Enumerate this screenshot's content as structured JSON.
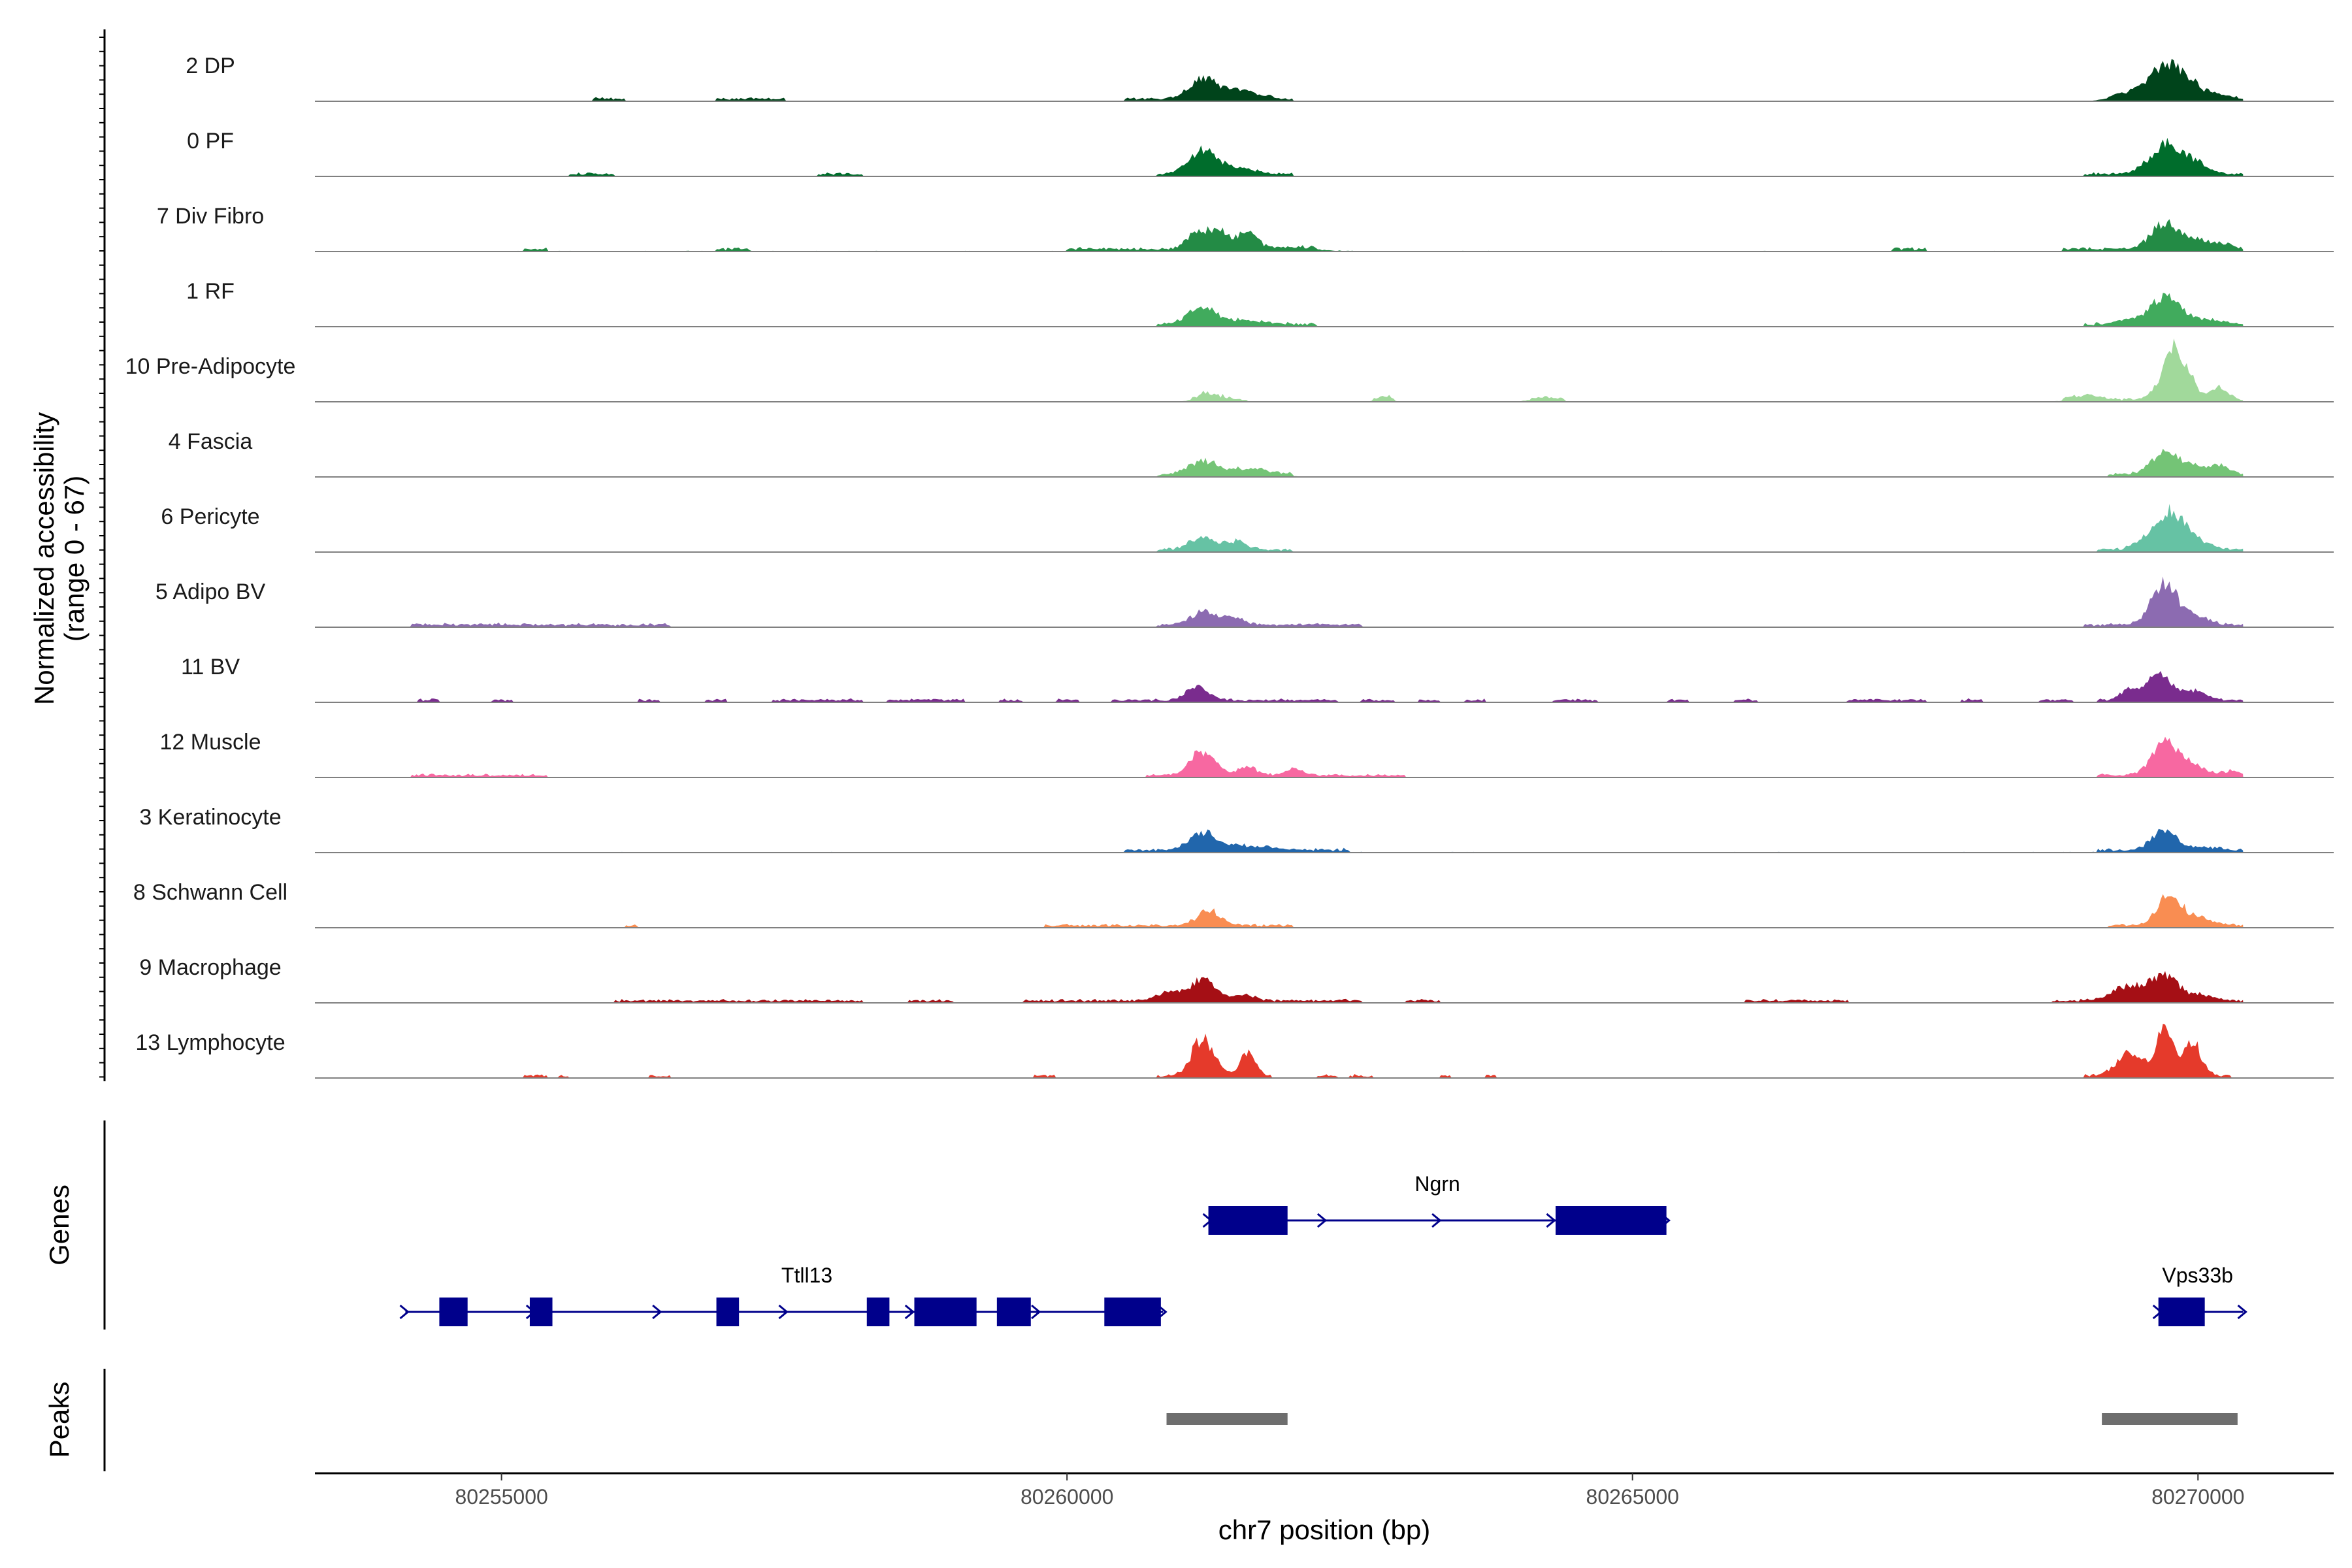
{
  "chart_data": {
    "type": "area",
    "title": "",
    "chromosome": "chr7",
    "xlabel": "chr7 position (bp)",
    "xlim": [
      80253350,
      80271200
    ],
    "xticks": [
      80255000,
      80260000,
      80265000,
      80270000
    ],
    "xtick_labels": [
      "80255000",
      "80260000",
      "80265000",
      "80270000"
    ],
    "ylabel_line1": "Normalized accessibility",
    "ylabel_line2": "(range 0 - 67)",
    "ylim": [
      0,
      67
    ],
    "genes_label": "Genes",
    "peaks_label": "Peaks",
    "series": [
      {
        "name": "2 DP",
        "color": "#00441b",
        "baseline": 0.4,
        "regions": [
          [
            80255800,
            80256100
          ],
          [
            80256900,
            80257500
          ],
          [
            80260500,
            80262000
          ],
          [
            80269200,
            80270400
          ]
        ],
        "peaks": [
          [
            80261200,
            18,
            120
          ],
          [
            80261450,
            6,
            120
          ],
          [
            80261650,
            4,
            120
          ],
          [
            80269400,
            6,
            150
          ],
          [
            80269700,
            28,
            130
          ],
          [
            80269900,
            12,
            120
          ],
          [
            80270150,
            4,
            120
          ]
        ]
      },
      {
        "name": "0 PF",
        "color": "#006d2c",
        "baseline": 0.4,
        "regions": [
          [
            80255600,
            80256000
          ],
          [
            80257800,
            80258200
          ],
          [
            80260800,
            80262000
          ],
          [
            80269000,
            80270400
          ]
        ],
        "peaks": [
          [
            80261200,
            20,
            120
          ],
          [
            80261500,
            6,
            140
          ],
          [
            80269700,
            26,
            130
          ],
          [
            80269950,
            10,
            130
          ]
        ]
      },
      {
        "name": "7 Div Fibro",
        "color": "#238b45",
        "baseline": 0.6,
        "regions": [
          [
            80255200,
            80255400
          ],
          [
            80256900,
            80257200
          ],
          [
            80260000,
            80262200
          ],
          [
            80267300,
            80267600
          ],
          [
            80268800,
            80270400
          ]
        ],
        "peaks": [
          [
            80261150,
            14,
            90
          ],
          [
            80261350,
            16,
            90
          ],
          [
            80261600,
            14,
            80
          ],
          [
            80262000,
            2,
            250
          ],
          [
            80269700,
            22,
            120
          ],
          [
            80269950,
            8,
            120
          ],
          [
            80270200,
            5,
            100
          ]
        ]
      },
      {
        "name": "1 RF",
        "color": "#41ab5d",
        "baseline": 0.4,
        "regions": [
          [
            80260800,
            80262200
          ],
          [
            80269000,
            80270400
          ]
        ],
        "peaks": [
          [
            80261200,
            16,
            120
          ],
          [
            80261600,
            4,
            150
          ],
          [
            80269400,
            4,
            140
          ],
          [
            80269720,
            24,
            130
          ],
          [
            80270100,
            4,
            140
          ]
        ]
      },
      {
        "name": "10 Pre-Adipocyte",
        "color": "#a1d99b",
        "baseline": 0.3,
        "regions": [
          [
            80261100,
            80261600
          ],
          [
            80262700,
            80262900
          ],
          [
            80264100,
            80264400
          ],
          [
            80268800,
            80270400
          ]
        ],
        "peaks": [
          [
            80261250,
            6,
            100
          ],
          [
            80262800,
            3,
            60
          ],
          [
            80264200,
            2,
            120
          ],
          [
            80269000,
            4,
            120
          ],
          [
            80269800,
            48,
            110
          ],
          [
            80270180,
            12,
            80
          ]
        ]
      },
      {
        "name": "4 Fascia",
        "color": "#74c476",
        "baseline": 0.3,
        "regions": [
          [
            80260800,
            80262000
          ],
          [
            80269200,
            80270400
          ]
        ],
        "peaks": [
          [
            80261200,
            12,
            120
          ],
          [
            80261600,
            5,
            200
          ],
          [
            80269700,
            18,
            120
          ],
          [
            80269950,
            8,
            140
          ],
          [
            80270200,
            6,
            100
          ]
        ]
      },
      {
        "name": "6 Pericyte",
        "color": "#66c2a4",
        "baseline": 0.3,
        "regions": [
          [
            80260800,
            80262000
          ],
          [
            80269100,
            80270400
          ]
        ],
        "peaks": [
          [
            80261200,
            12,
            110
          ],
          [
            80261500,
            8,
            90
          ],
          [
            80269600,
            14,
            120
          ],
          [
            80269780,
            30,
            110
          ],
          [
            80270000,
            8,
            110
          ]
        ]
      },
      {
        "name": "5 Adipo BV",
        "color": "#8c6bb1",
        "baseline": 0.5,
        "regions": [
          [
            80254200,
            80256500
          ],
          [
            80260800,
            80262600
          ],
          [
            80269000,
            80270400
          ]
        ],
        "peaks": [
          [
            80261200,
            12,
            100
          ],
          [
            80261450,
            8,
            100
          ],
          [
            80269700,
            36,
            110
          ],
          [
            80269950,
            8,
            130
          ]
        ]
      },
      {
        "name": "11 BV",
        "color": "#7a2c8e",
        "baseline": 0,
        "regions": [
          [
            80254250,
            80254450
          ],
          [
            80254900,
            80255100
          ],
          [
            80256200,
            80256400
          ],
          [
            80256800,
            80257000
          ],
          [
            80257400,
            80258200
          ],
          [
            80258400,
            80259100
          ],
          [
            80259400,
            80259600
          ],
          [
            80259900,
            80260100
          ],
          [
            80260400,
            80262400
          ],
          [
            80262600,
            80262900
          ],
          [
            80263100,
            80263300
          ],
          [
            80263500,
            80263700
          ],
          [
            80264300,
            80264700
          ],
          [
            80265300,
            80265500
          ],
          [
            80265900,
            80266100
          ],
          [
            80266900,
            80267600
          ],
          [
            80267900,
            80268100
          ],
          [
            80268600,
            80268900
          ],
          [
            80269100,
            80270400
          ]
        ],
        "peaks": [
          [
            80261150,
            12,
            100
          ],
          [
            80269400,
            10,
            80
          ],
          [
            80269650,
            22,
            110
          ],
          [
            80269950,
            8,
            120
          ]
        ]
      },
      {
        "name": "12 Muscle",
        "color": "#f768a1",
        "baseline": 0,
        "regions": [
          [
            80254200,
            80255400
          ],
          [
            80260700,
            80263000
          ],
          [
            80269100,
            80270400
          ]
        ],
        "peaks": [
          [
            80261200,
            22,
            110
          ],
          [
            80261600,
            8,
            80
          ],
          [
            80262000,
            6,
            80
          ],
          [
            80269700,
            30,
            110
          ],
          [
            80269950,
            10,
            100
          ],
          [
            80270300,
            4,
            80
          ]
        ]
      },
      {
        "name": "3 Keratinocyte",
        "color": "#2166ac",
        "baseline": 0.6,
        "regions": [
          [
            80260500,
            80262500
          ],
          [
            80269100,
            80270400
          ]
        ],
        "peaks": [
          [
            80261200,
            16,
            110
          ],
          [
            80261600,
            4,
            200
          ],
          [
            80269700,
            18,
            110
          ],
          [
            80270100,
            3,
            120
          ]
        ]
      },
      {
        "name": "8 Schwann Cell",
        "color": "#f98d52",
        "baseline": 0,
        "regions": [
          [
            80256100,
            80256200
          ],
          [
            80259800,
            80262000
          ],
          [
            80269200,
            80270400
          ]
        ],
        "peaks": [
          [
            80261250,
            14,
            100
          ],
          [
            80269750,
            28,
            110
          ],
          [
            80270050,
            6,
            120
          ]
        ]
      },
      {
        "name": "9 Macrophage",
        "color": "#a50f15",
        "baseline": 0,
        "regions": [
          [
            80256000,
            80258200
          ],
          [
            80258600,
            80259000
          ],
          [
            80259600,
            80262600
          ],
          [
            80263000,
            80263300
          ],
          [
            80266000,
            80266900
          ],
          [
            80268700,
            80270400
          ]
        ],
        "peaks": [
          [
            80260900,
            8,
            110
          ],
          [
            80261200,
            18,
            110
          ],
          [
            80261550,
            6,
            100
          ],
          [
            80269400,
            14,
            140
          ],
          [
            80269700,
            22,
            110
          ],
          [
            80270000,
            6,
            120
          ]
        ]
      },
      {
        "name": "13 Lymphocyte",
        "color": "#e53a2b",
        "baseline": 0,
        "regions": [
          [
            80255200,
            80255400
          ],
          [
            80255500,
            80255600
          ],
          [
            80256300,
            80256500
          ],
          [
            80259700,
            80259900
          ],
          [
            80260800,
            80261000
          ],
          [
            80261100,
            80261800
          ],
          [
            80262200,
            80262400
          ],
          [
            80262500,
            80262700
          ],
          [
            80263300,
            80263400
          ],
          [
            80263700,
            80263800
          ],
          [
            80269000,
            80270300
          ]
        ],
        "peaks": [
          [
            80261200,
            34,
            100
          ],
          [
            80261600,
            20,
            70
          ],
          [
            80269400,
            22,
            110
          ],
          [
            80269700,
            46,
            70
          ],
          [
            80269950,
            30,
            80
          ]
        ]
      }
    ],
    "genes": [
      {
        "name": "Ttll13",
        "start": 80254150,
        "end": 80260850,
        "strand": "+",
        "row": 2,
        "exons": [
          [
            80254450,
            80254700
          ],
          [
            80255250,
            80255450
          ],
          [
            80256900,
            80257100
          ],
          [
            80258230,
            80258430
          ],
          [
            80258650,
            80259200
          ],
          [
            80259380,
            80259680
          ],
          [
            80260330,
            80260830
          ]
        ]
      },
      {
        "name": "Ngrn",
        "start": 80261250,
        "end": 80265300,
        "strand": "+",
        "row": 1,
        "exons": [
          [
            80261250,
            80261950
          ],
          [
            80264320,
            80265300
          ]
        ]
      },
      {
        "name": "Vps33b",
        "start": 80269650,
        "end": 80270400,
        "strand": "+",
        "row": 2,
        "exons": [
          [
            80269650,
            80270060
          ]
        ]
      }
    ],
    "peaks_ranges": [
      [
        80260880,
        80261950
      ],
      [
        80269150,
        80270350
      ]
    ]
  }
}
